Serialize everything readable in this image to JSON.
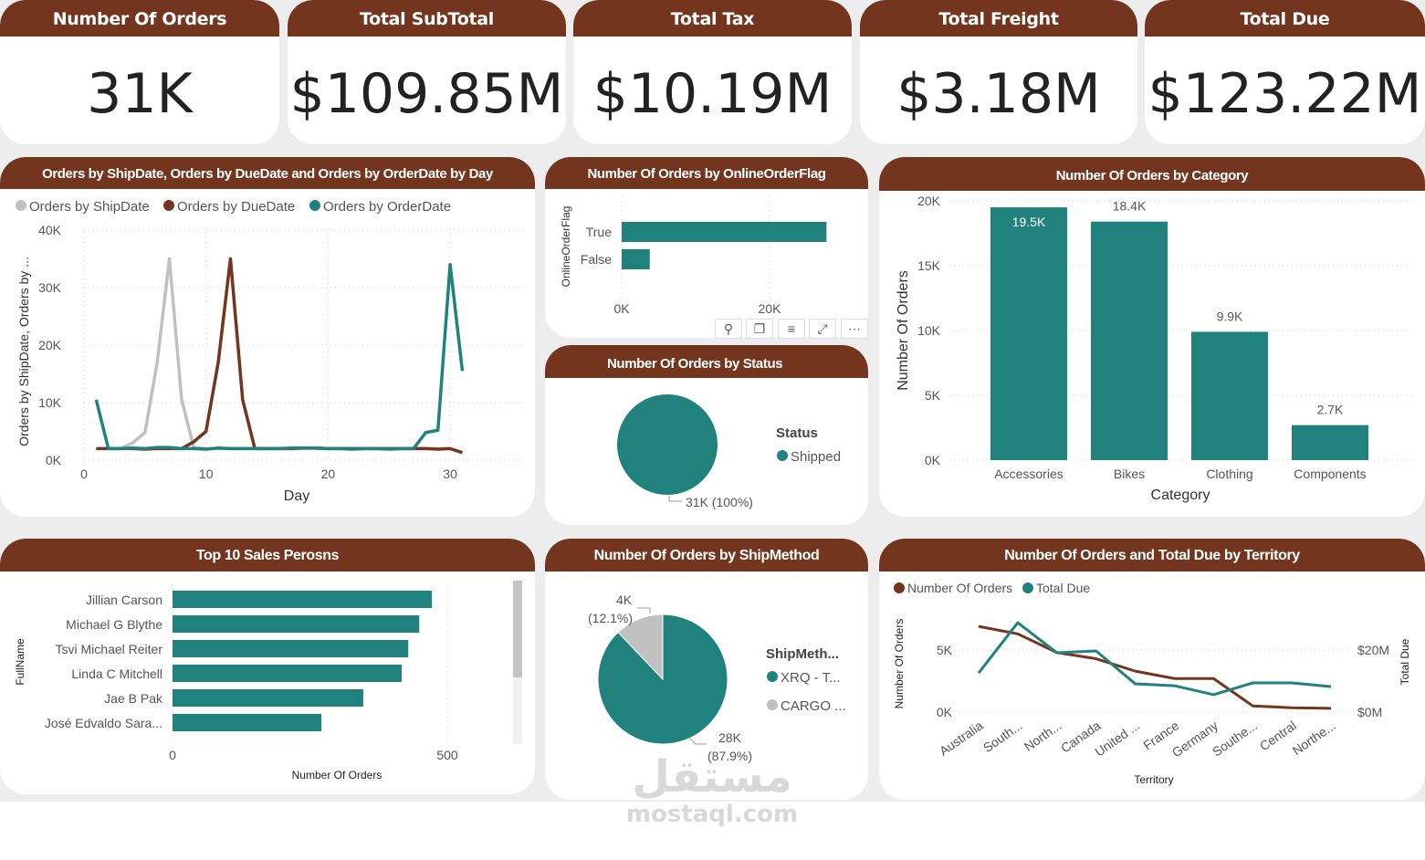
{
  "kpis": [
    {
      "title": "Number Of Orders",
      "value": "31K"
    },
    {
      "title": "Total SubTotal",
      "value": "$109.85M"
    },
    {
      "title": "Total Tax",
      "value": "$10.19M"
    },
    {
      "title": "Total Freight",
      "value": "$3.18M"
    },
    {
      "title": "Total Due",
      "value": "$123.22M"
    }
  ],
  "colors": {
    "header": "#74351f",
    "teal": "#21827d",
    "brown": "#74351f",
    "gray": "#c0c0c0"
  },
  "toolbar": {
    "icons": [
      "pin-icon",
      "copy-icon",
      "filter-icon",
      "expand-icon",
      "more-icon"
    ],
    "glyphs": [
      "⚲",
      "❐",
      "≡",
      "⤢",
      "⋯"
    ]
  },
  "watermark": {
    "arabic": "مستقل",
    "latin": "mostaql.com"
  },
  "chart_data": [
    {
      "type": "line",
      "title": "Orders by ShipDate, Orders by DueDate and Orders by OrderDate by Day",
      "xlabel": "Day",
      "ylabel": "Orders by ShipDate, Orders by ...",
      "xlim": [
        0,
        35
      ],
      "ylim": [
        0,
        40000
      ],
      "xticks": [
        "0",
        "10",
        "20",
        "30"
      ],
      "yticks": [
        "0K",
        "10K",
        "20K",
        "30K",
        "40K"
      ],
      "legend": "top-left",
      "grid": true,
      "x": [
        1,
        2,
        3,
        4,
        5,
        6,
        7,
        8,
        9,
        10,
        11,
        12,
        13,
        14,
        15,
        16,
        17,
        18,
        19,
        20,
        21,
        22,
        23,
        24,
        25,
        26,
        27,
        28,
        29,
        30,
        31
      ],
      "series": [
        {
          "name": "Orders by ShipDate",
          "color": "#c0c0c0",
          "values": [
            null,
            null,
            2000,
            3000,
            4800,
            17000,
            35000,
            10500,
            2200,
            2000,
            2000,
            2000,
            2000,
            2000,
            2000,
            2000,
            2000,
            2000,
            2000,
            2000,
            2000,
            2000,
            2000,
            2000,
            2000,
            2000,
            2000,
            2000,
            2000,
            2000,
            null
          ]
        },
        {
          "name": "Orders by DueDate",
          "color": "#74351f",
          "values": [
            2000,
            2000,
            2000,
            2000,
            1900,
            2000,
            2000,
            2000,
            3200,
            5000,
            17000,
            35000,
            10500,
            2000,
            2000,
            2000,
            2000,
            2100,
            2100,
            2000,
            2000,
            2000,
            2000,
            2000,
            2000,
            2000,
            2000,
            2000,
            1900,
            2000,
            1300
          ]
        },
        {
          "name": "Orders by OrderDate",
          "color": "#21827d",
          "values": [
            10500,
            2000,
            2000,
            2100,
            2000,
            2200,
            2200,
            2000,
            2000,
            1900,
            2100,
            2000,
            2000,
            2000,
            2000,
            2000,
            2100,
            2100,
            2100,
            2000,
            2000,
            1900,
            2000,
            2000,
            1900,
            2000,
            2000,
            4800,
            5200,
            34000,
            15500
          ]
        }
      ]
    },
    {
      "type": "bar",
      "orientation": "horizontal",
      "title": "Number Of Orders by OnlineOrderFlag",
      "ylabel": "OnlineOrderFlag",
      "categories": [
        "True",
        "False"
      ],
      "values": [
        27700,
        3800
      ],
      "xticks": [
        "0K",
        "20K"
      ],
      "grid": true
    },
    {
      "type": "pie",
      "title": "Number Of Orders by Status",
      "legend_title": "Status",
      "categories": [
        "Shipped"
      ],
      "values": [
        31000
      ],
      "labels": [
        "31K (100%)"
      ]
    },
    {
      "type": "bar",
      "title": "Number Of Orders by Category",
      "xlabel": "Category",
      "ylabel": "Number Of Orders",
      "ylim": [
        0,
        20000
      ],
      "yticks": [
        "0K",
        "5K",
        "10K",
        "15K",
        "20K"
      ],
      "categories": [
        "Accessories",
        "Bikes",
        "Clothing",
        "Components"
      ],
      "values": [
        19500,
        18400,
        9900,
        2700
      ],
      "data_labels": [
        "19.5K",
        "18.4K",
        "9.9K",
        "2.7K"
      ],
      "grid": true
    },
    {
      "type": "bar",
      "orientation": "horizontal",
      "title": "Top 10 Sales Perosns",
      "xlabel": "Number Of Orders",
      "ylabel": "FullName",
      "categories": [
        "Jillian Carson",
        "Michael G Blythe",
        "Tsvi Michael Reiter",
        "Linda C Mitchell",
        "Jae B Pak",
        "José Edvaldo Sara..."
      ],
      "values": [
        472,
        449,
        429,
        417,
        347,
        271
      ],
      "xticks": [
        "0",
        "500"
      ],
      "grid": true
    },
    {
      "type": "pie",
      "title": "Number Of Orders by ShipMethod",
      "legend_title": "ShipMeth...",
      "categories": [
        "XRQ - T...",
        "CARGO ..."
      ],
      "values": [
        28000,
        4000
      ],
      "percents": [
        87.9,
        12.1
      ],
      "labels": [
        [
          "28K",
          "(87.9%)"
        ],
        [
          "4K",
          "(12.1%)"
        ]
      ]
    },
    {
      "type": "line",
      "title": "Number Of Orders and Total Due by Territory",
      "xlabel": "Territory",
      "ylabel": "Number Of Orders",
      "y2label": "Total Due",
      "yticks": [
        "0K",
        "5K"
      ],
      "y2ticks": [
        "$0M",
        "$20M"
      ],
      "legend": "top-left",
      "categories": [
        "Australia",
        "South...",
        "North...",
        "Canada",
        "United ...",
        "France",
        "Germany",
        "Southe...",
        "Central",
        "Northe..."
      ],
      "series": [
        {
          "name": "Number Of Orders",
          "color": "#74351f",
          "axis": "left",
          "values": [
            6900,
            6300,
            4800,
            4300,
            3300,
            2700,
            2700,
            500,
            350,
            300
          ]
        },
        {
          "name": "Total Due",
          "color": "#21827d",
          "axis": "right",
          "values": [
            12.6,
            28.8,
            19.1,
            19.7,
            9.1,
            8.5,
            5.6,
            9.4,
            9.4,
            8.2
          ]
        }
      ]
    }
  ]
}
